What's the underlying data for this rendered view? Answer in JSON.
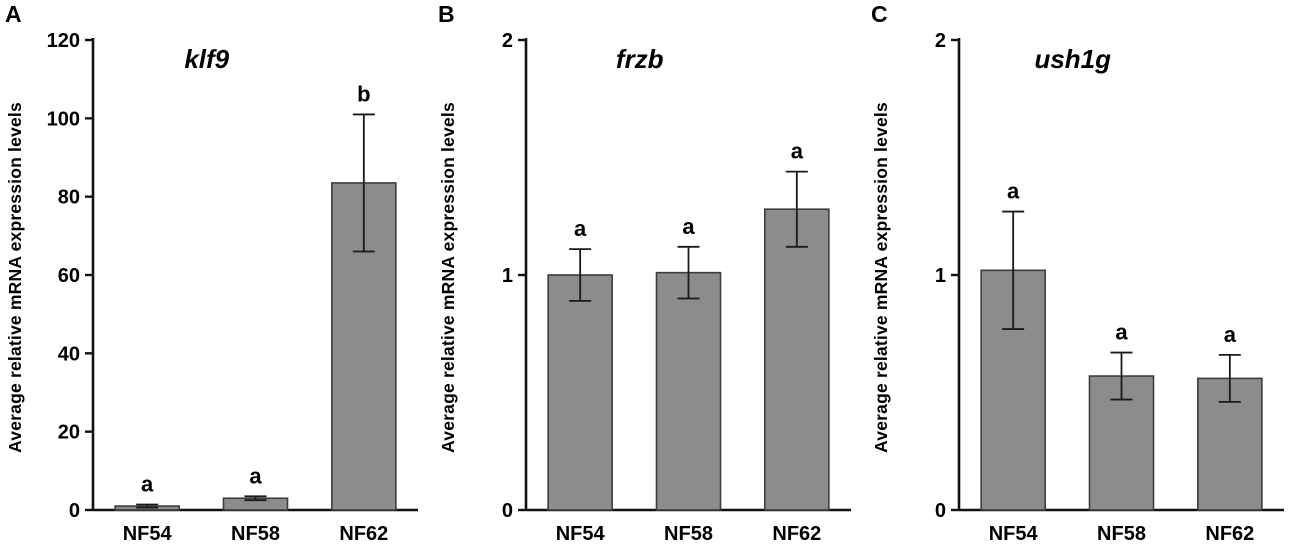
{
  "chart_data": [
    {
      "type": "bar",
      "panel_letter": "A",
      "title": "klf9",
      "ylabel": "Average relative mRNA expression levels",
      "xlabel": "",
      "categories": [
        "NF54",
        "NF58",
        "NF62"
      ],
      "values": [
        1,
        3,
        83.5
      ],
      "errors": [
        0.4,
        0.5,
        17.5
      ],
      "sig_labels": [
        "a",
        "a",
        "b"
      ],
      "ylim": [
        0,
        120
      ],
      "yticks": [
        0,
        20,
        40,
        60,
        80,
        100,
        120
      ],
      "grid": "off",
      "legend": "none",
      "bar_color": "#8c8c8c",
      "bar_border": "#3d3d3d",
      "axis_color": "#111111"
    },
    {
      "type": "bar",
      "panel_letter": "B",
      "title": "frzb",
      "ylabel": "Average relative mRNA expression levels",
      "xlabel": "",
      "categories": [
        "NF54",
        "NF58",
        "NF62"
      ],
      "values": [
        1.0,
        1.01,
        1.28
      ],
      "errors": [
        0.11,
        0.11,
        0.16
      ],
      "sig_labels": [
        "a",
        "a",
        "a"
      ],
      "ylim": [
        0,
        2
      ],
      "yticks": [
        0,
        1,
        2
      ],
      "grid": "off",
      "legend": "none",
      "bar_color": "#8c8c8c",
      "bar_border": "#3d3d3d",
      "axis_color": "#111111"
    },
    {
      "type": "bar",
      "panel_letter": "C",
      "title": "ush1g",
      "ylabel": "Average relative mRNA expression levels",
      "xlabel": "",
      "categories": [
        "NF54",
        "NF58",
        "NF62"
      ],
      "values": [
        1.02,
        0.57,
        0.56
      ],
      "errors": [
        0.25,
        0.1,
        0.1
      ],
      "sig_labels": [
        "a",
        "a",
        "a"
      ],
      "ylim": [
        0,
        2
      ],
      "yticks": [
        0,
        1,
        2
      ],
      "grid": "off",
      "legend": "none",
      "bar_color": "#8c8c8c",
      "bar_border": "#3d3d3d",
      "axis_color": "#111111"
    }
  ]
}
